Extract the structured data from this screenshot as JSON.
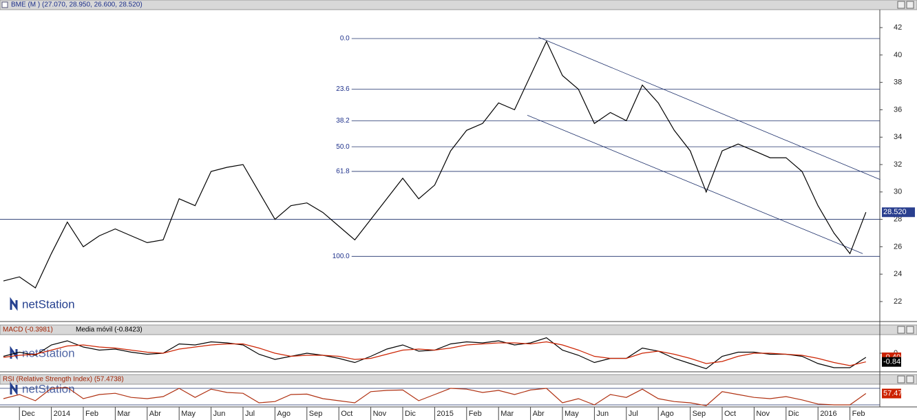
{
  "watermark": "netStation",
  "chart_data": [
    {
      "type": "line",
      "title": "BME (M ) (27.070, 28.950, 26.600, 28.520)",
      "categories": [
        null,
        "Dec",
        null,
        "2014",
        null,
        "Feb",
        null,
        "Mar",
        null,
        "Abr",
        null,
        "May",
        null,
        "Jun",
        null,
        "Jul",
        null,
        "Ago",
        null,
        "Sep",
        null,
        "Oct",
        null,
        "Nov",
        null,
        "Dic",
        null,
        "2015",
        null,
        "Feb",
        null,
        "Mar",
        null,
        "Abr",
        null,
        "May",
        null,
        "Jun",
        null,
        "Jul",
        null,
        "Ago",
        null,
        "Sep",
        null,
        "Oct",
        null,
        "Nov",
        null,
        "Dic",
        null,
        "2016",
        null,
        "Feb",
        null
      ],
      "values": [
        23.5,
        23.8,
        23.0,
        25.5,
        27.8,
        26.0,
        26.8,
        27.3,
        26.8,
        26.3,
        26.5,
        29.5,
        29.0,
        31.5,
        31.8,
        32.0,
        30.0,
        28.0,
        29.0,
        29.2,
        28.5,
        27.5,
        26.5,
        28.0,
        29.5,
        31.0,
        29.5,
        30.5,
        33.0,
        34.5,
        35.0,
        36.5,
        36.0,
        38.5,
        41.0,
        38.5,
        37.5,
        35.0,
        35.8,
        35.2,
        37.8,
        36.5,
        34.5,
        33.0,
        30.0,
        33.0,
        33.5,
        33.0,
        32.5,
        32.5,
        31.5,
        29.0,
        27.0,
        25.5,
        28.52
      ],
      "last_label": "28.520",
      "color": "#000000",
      "ylim": [
        20.54,
        43.31
      ],
      "yticks": [
        22,
        24,
        26,
        28,
        30,
        32,
        34,
        36,
        38,
        40,
        42
      ],
      "hlines": [
        28
      ],
      "fibonacci": {
        "x_start": 21.8,
        "levels": [
          {
            "value": 41.2,
            "label": "0.0"
          },
          {
            "value": 37.5,
            "label": "23.6"
          },
          {
            "value": 35.2,
            "label": "38.2"
          },
          {
            "value": 33.3,
            "label": "50.0"
          },
          {
            "value": 31.5,
            "label": "61.8"
          },
          {
            "value": 25.3,
            "label": "100.0"
          }
        ]
      },
      "channels": [
        {
          "x": [
            33.5,
            54.9
          ],
          "y": [
            41.3,
            30.9
          ]
        },
        {
          "x": [
            32.8,
            53.8
          ],
          "y": [
            35.6,
            25.5
          ]
        }
      ]
    },
    {
      "type": "line",
      "series": [
        {
          "name": "MACD (-0.3981)",
          "color": "#000000",
          "values": [
            -0.3,
            0.1,
            -0.2,
            0.8,
            1.2,
            0.6,
            0.3,
            0.4,
            0.1,
            -0.1,
            0.0,
            0.9,
            0.8,
            1.1,
            1.0,
            0.8,
            -0.1,
            -0.6,
            -0.3,
            0.0,
            -0.2,
            -0.5,
            -0.9,
            -0.3,
            0.4,
            0.8,
            0.2,
            0.3,
            0.9,
            1.1,
            1.0,
            1.2,
            0.8,
            1.0,
            1.5,
            0.3,
            -0.2,
            -0.9,
            -0.5,
            -0.5,
            0.5,
            0.2,
            -0.5,
            -1.0,
            -1.5,
            -0.3,
            0.1,
            0.1,
            -0.1,
            -0.1,
            -0.3,
            -1.0,
            -1.4,
            -1.4,
            -0.3981
          ],
          "last_label": "-0.40"
        },
        {
          "name": "Media móvil (-0.8423)",
          "color": "#cc2200",
          "values": [
            -0.4,
            -0.2,
            -0.1,
            0.3,
            0.7,
            0.8,
            0.6,
            0.5,
            0.3,
            0.1,
            0.0,
            0.4,
            0.6,
            0.8,
            0.9,
            0.9,
            0.5,
            0.0,
            -0.3,
            -0.2,
            -0.2,
            -0.3,
            -0.6,
            -0.5,
            -0.1,
            0.3,
            0.4,
            0.3,
            0.5,
            0.8,
            0.9,
            1.0,
            1.0,
            0.9,
            1.1,
            0.8,
            0.3,
            -0.3,
            -0.5,
            -0.5,
            0.0,
            0.2,
            -0.1,
            -0.5,
            -1.0,
            -0.8,
            -0.3,
            0.0,
            0.0,
            -0.1,
            -0.2,
            -0.5,
            -0.9,
            -1.2,
            -0.8423
          ],
          "last_label": "-0.84"
        }
      ],
      "ylim": [
        -1.8,
        1.8
      ],
      "yticks": [
        0
      ]
    },
    {
      "type": "line",
      "series": [
        {
          "name": "RSI (Relative Strength Index) (57.4738)",
          "color": "#b03010",
          "values": [
            45,
            55,
            40,
            70,
            72,
            45,
            55,
            58,
            48,
            45,
            50,
            70,
            48,
            68,
            60,
            58,
            35,
            38,
            55,
            56,
            45,
            40,
            35,
            62,
            65,
            66,
            40,
            55,
            70,
            68,
            60,
            65,
            55,
            66,
            70,
            35,
            45,
            30,
            55,
            48,
            68,
            45,
            38,
            35,
            28,
            62,
            55,
            48,
            45,
            50,
            42,
            32,
            30,
            30,
            57.4738
          ],
          "last_label": "57.47"
        }
      ],
      "ylim": [
        20,
        80
      ],
      "hlines": [
        70,
        30
      ]
    }
  ]
}
